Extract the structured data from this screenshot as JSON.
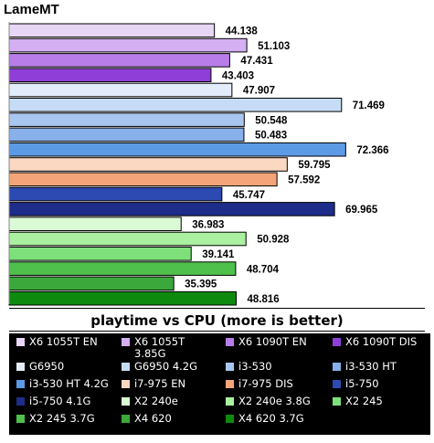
{
  "chart_data": {
    "type": "bar",
    "orientation": "horizontal",
    "title": "LameMT",
    "subtitle": "playtime vs CPU (more is better)",
    "xlim": [
      0,
      80
    ],
    "grid": false,
    "legend_position": "bottom",
    "series": [
      {
        "name": "X6 1055T EN",
        "value": 44.138,
        "label": "44.138",
        "color": "#e8d6f6"
      },
      {
        "name": "X6 1055T 3.85G",
        "value": 51.103,
        "label": "51.103",
        "color": "#d4b0f2"
      },
      {
        "name": "X6 1090T EN",
        "value": 47.431,
        "label": "47.431",
        "color": "#b87de8"
      },
      {
        "name": "X6 1090T DIS",
        "value": 43.403,
        "label": "43.403",
        "color": "#8f3fd8"
      },
      {
        "name": "G6950",
        "value": 47.907,
        "label": "47.907",
        "color": "#e2ecfa"
      },
      {
        "name": "G6950 4.2G",
        "value": 71.469,
        "label": "71.469",
        "color": "#c6dcf6"
      },
      {
        "name": "i3-530",
        "value": 50.548,
        "label": "50.548",
        "color": "#a8c6f0"
      },
      {
        "name": "i3-530 HT",
        "value": 50.483,
        "label": "50.483",
        "color": "#88b0ea"
      },
      {
        "name": "i3-530 HT 4.2G",
        "value": 72.366,
        "label": "72.366",
        "color": "#5c9ae6"
      },
      {
        "name": "i7-975 EN",
        "value": 59.795,
        "label": "59.795",
        "color": "#fad8c2"
      },
      {
        "name": "i7-975 DIS",
        "value": 57.592,
        "label": "57.592",
        "color": "#f4a478"
      },
      {
        "name": "i5-750",
        "value": 45.747,
        "label": "45.747",
        "color": "#2c4ab2"
      },
      {
        "name": "i5-750 4.1G",
        "value": 69.965,
        "label": "69.965",
        "color": "#1e2c8a"
      },
      {
        "name": "X2 240e",
        "value": 36.983,
        "label": "36.983",
        "color": "#dafad6"
      },
      {
        "name": "X2 240e 3.8G",
        "value": 50.928,
        "label": "50.928",
        "color": "#aaf0a0"
      },
      {
        "name": "X2 245",
        "value": 39.141,
        "label": "39.141",
        "color": "#7ee07a"
      },
      {
        "name": "X2 245 3.7G",
        "value": 48.704,
        "label": "48.704",
        "color": "#50c04c"
      },
      {
        "name": "X4 620",
        "value": 35.395,
        "label": "35.395",
        "color": "#3aa83a"
      },
      {
        "name": "X4 620 3.7G",
        "value": 48.816,
        "label": "48.816",
        "color": "#0e8a0e"
      }
    ]
  }
}
